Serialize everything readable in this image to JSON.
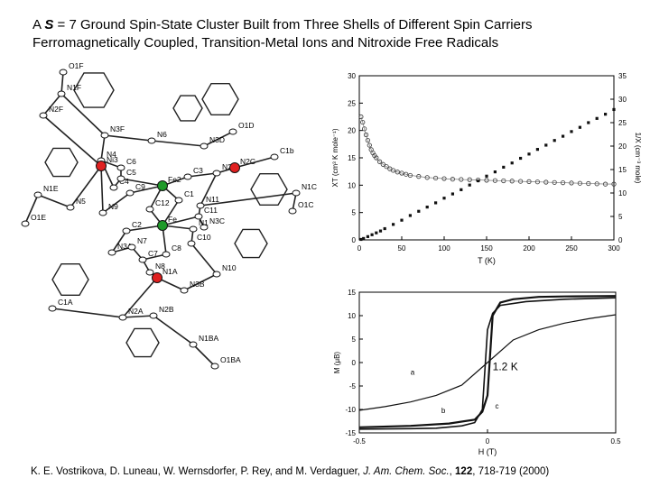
{
  "title": {
    "line1_prefix": "A ",
    "line1_symbol": "S",
    "line1_mid": " = 7 ",
    "line1_rest": "Ground Spin-State Cluster Built from Three Shells of Different Spin Carriers",
    "line2": "Ferromagnetically Coupled, Transition-Metal Ions and Nitroxide Free Radicals"
  },
  "molecule": {
    "atom_labels": [
      "O1F",
      "N1F",
      "N2F",
      "N3F",
      "N6",
      "O1D",
      "N3D",
      "N4",
      "C6",
      "C4",
      "C5",
      "Fe2",
      "C3",
      "N2",
      "N2C",
      "C1b",
      "C1",
      "N11",
      "N1C",
      "O1C",
      "N1E",
      "N5",
      "C9",
      "C12",
      "C11",
      "N3C",
      "N9",
      "C2",
      "Fe",
      "N1",
      "C10",
      "N3A",
      "N7",
      "C7",
      "C8",
      "N8",
      "N10",
      "O1E",
      "N1A",
      "Ni3",
      "N3B",
      "C1A",
      "N2A",
      "N2B",
      "N1BA",
      "O1BA"
    ],
    "colors": {
      "nickel": "#e02020",
      "iron": "#1f9a2a",
      "bonds": "#222222"
    }
  },
  "chart_data": [
    {
      "type": "scatter",
      "xlabel": "T (K)",
      "ylabel_left": "XT (cm³ K mole⁻¹)",
      "ylabel_right": "1/X (cm⁻³ mole)",
      "xlim": [
        0,
        300
      ],
      "ylim_left": [
        0,
        30
      ],
      "ylim_right": [
        0,
        35
      ],
      "xticks": [
        0,
        50,
        100,
        150,
        200,
        250,
        300
      ],
      "yticks_left": [
        0,
        5,
        10,
        15,
        20,
        25,
        30
      ],
      "yticks_right": [
        0,
        5,
        10,
        15,
        20,
        25,
        30,
        35
      ],
      "series": [
        {
          "axis": "left",
          "marker": "open-circle",
          "x": [
            2,
            4,
            6,
            8,
            10,
            12,
            14,
            16,
            18,
            20,
            24,
            28,
            32,
            36,
            40,
            45,
            50,
            55,
            60,
            70,
            80,
            90,
            100,
            110,
            120,
            130,
            140,
            150,
            160,
            170,
            180,
            190,
            200,
            210,
            220,
            230,
            240,
            250,
            260,
            270,
            280,
            290,
            300
          ],
          "y": [
            22.5,
            21.5,
            20.3,
            19.2,
            18.2,
            17.3,
            16.5,
            15.9,
            15.4,
            15.0,
            14.3,
            13.8,
            13.4,
            13.0,
            12.7,
            12.4,
            12.2,
            12.0,
            11.8,
            11.6,
            11.4,
            11.3,
            11.2,
            11.1,
            11.05,
            11.0,
            10.95,
            10.9,
            10.85,
            10.8,
            10.75,
            10.7,
            10.65,
            10.6,
            10.55,
            10.5,
            10.45,
            10.4,
            10.35,
            10.3,
            10.25,
            10.2,
            10.2
          ]
        },
        {
          "axis": "right",
          "marker": "filled-square",
          "x": [
            2,
            5,
            10,
            15,
            20,
            25,
            30,
            40,
            50,
            60,
            70,
            80,
            90,
            100,
            110,
            120,
            130,
            140,
            150,
            160,
            170,
            180,
            190,
            200,
            210,
            220,
            230,
            240,
            250,
            260,
            270,
            280,
            290,
            300
          ],
          "y": [
            0.1,
            0.3,
            0.7,
            1.1,
            1.5,
            1.9,
            2.4,
            3.3,
            4.2,
            5.2,
            6.1,
            7.0,
            7.9,
            8.9,
            9.8,
            10.7,
            11.7,
            12.6,
            13.6,
            14.5,
            15.5,
            16.4,
            17.4,
            18.3,
            19.3,
            20.2,
            21.2,
            22.1,
            23.1,
            24.0,
            25.0,
            25.9,
            26.8,
            27.8
          ]
        }
      ]
    },
    {
      "type": "line",
      "xlabel": "H (T)",
      "ylabel": "M (μB)",
      "xlim": [
        -0.5,
        0.5
      ],
      "ylim": [
        -15,
        15
      ],
      "xticks": [
        -0.5,
        0,
        0.5
      ],
      "yticks": [
        -15,
        -10,
        -5,
        0,
        5,
        10,
        15
      ],
      "annotations": {
        "temperature": "1.2 K",
        "curve_a": "a",
        "curve_b": "b",
        "curve_c": "c"
      },
      "series": [
        {
          "name": "a",
          "x": [
            -0.5,
            -0.4,
            -0.3,
            -0.2,
            -0.1,
            0,
            0.1,
            0.2,
            0.3,
            0.4,
            0.5
          ],
          "y": [
            -10.2,
            -9.4,
            -8.4,
            -7.0,
            -4.8,
            0.0,
            4.8,
            7.0,
            8.4,
            9.4,
            10.2
          ]
        },
        {
          "name": "b",
          "x": [
            -0.5,
            -0.3,
            -0.15,
            -0.05,
            -0.02,
            0.0,
            0.02,
            0.05,
            0.1,
            0.2,
            0.3,
            0.5
          ],
          "y": [
            -13.8,
            -13.5,
            -13.0,
            -12.2,
            -10.5,
            -7.0,
            10.0,
            12.8,
            13.5,
            14.0,
            14.1,
            14.2
          ]
        },
        {
          "name": "c",
          "x": [
            -0.5,
            -0.3,
            -0.2,
            -0.1,
            -0.05,
            -0.02,
            0.0,
            0.02,
            0.05,
            0.15,
            0.3,
            0.5
          ],
          "y": [
            -14.2,
            -14.1,
            -14.0,
            -13.5,
            -12.8,
            -10.0,
            7.0,
            10.5,
            12.2,
            13.0,
            13.5,
            13.8
          ]
        }
      ]
    }
  ],
  "citation": {
    "authors": "K. E. Vostrikova, D. Luneau, W. Wernsdorfer, P. Rey, and M. Verdaguer, ",
    "journal": "J. Am. Chem. Soc.",
    "sep": ", ",
    "volume": "122",
    "pages": ", 718-719 (2000)"
  }
}
